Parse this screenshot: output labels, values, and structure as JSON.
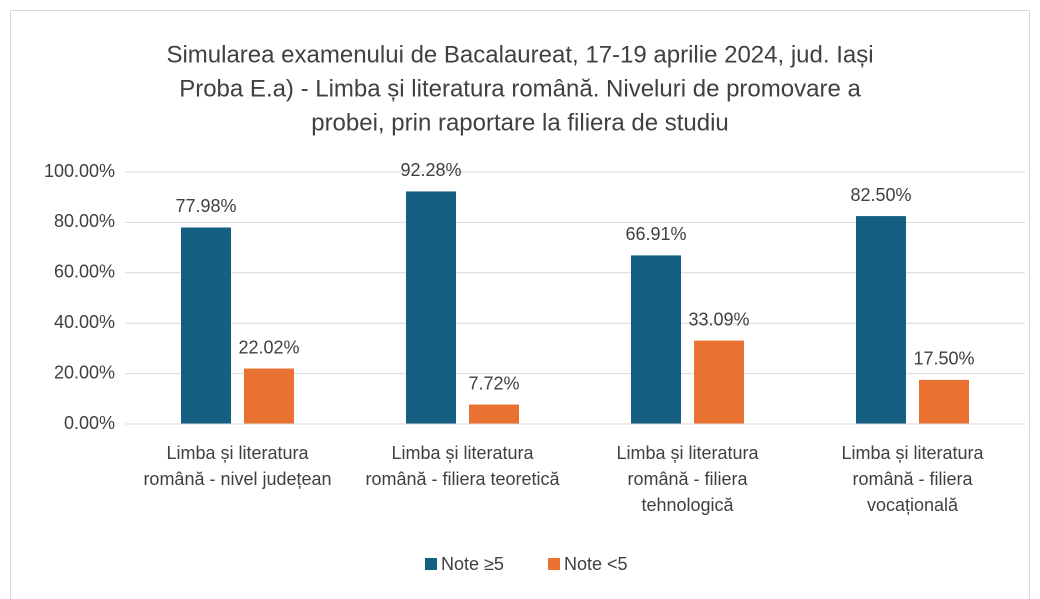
{
  "chart_data": {
    "type": "bar",
    "title": [
      "Simularea examenului de Bacalaureat, 17-19 aprilie 2024, jud. Iași",
      "Proba E.a) - Limba și literatura română. Niveluri de promovare a",
      "probei, prin raportare la filiera de studiu"
    ],
    "categories": [
      "Limba și literatura română - nivel județean",
      "Limba și literatura română - filiera teoretică",
      "Limba și literatura română - filiera tehnologică",
      "Limba și literatura română - filiera vocațională"
    ],
    "series": [
      {
        "name": "Note ≥5",
        "color": "#156082",
        "values": [
          77.98,
          92.28,
          66.91,
          82.5
        ],
        "value_labels": [
          "77.98%",
          "92.28%",
          "66.91%",
          "82.50%"
        ]
      },
      {
        "name": "Note <5",
        "color": "#e97132",
        "values": [
          22.02,
          7.72,
          33.09,
          17.5
        ],
        "value_labels": [
          "22.02%",
          "7.72%",
          "33.09%",
          "17.50%"
        ]
      }
    ],
    "ylim": [
      0,
      100
    ],
    "yticks": [
      {
        "value": 0,
        "label": "0.00%"
      },
      {
        "value": 20,
        "label": "20.00%"
      },
      {
        "value": 40,
        "label": "40.00%"
      },
      {
        "value": 60,
        "label": "60.00%"
      },
      {
        "value": 80,
        "label": "80.00%"
      },
      {
        "value": 100,
        "label": "100.00%"
      }
    ],
    "grid": true,
    "legend": "bottom"
  }
}
